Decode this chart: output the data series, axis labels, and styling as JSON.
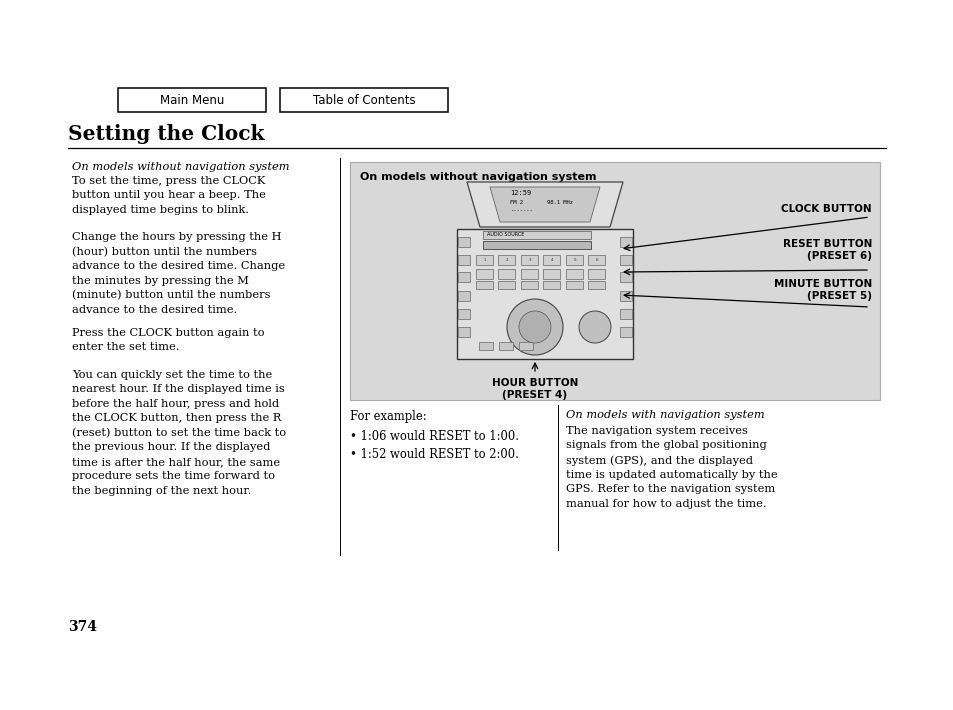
{
  "page_bg": "#ffffff",
  "title": "Setting the Clock",
  "page_number": "374",
  "btn1_text": "Main Menu",
  "btn2_text": "Table of Contents",
  "image_box": {
    "bg": "#d8d8d8",
    "header": "On models without navigation system",
    "label1": "CLOCK BUTTON",
    "label2": "RESET BUTTON\n(PRESET 6)",
    "label3": "MINUTE BUTTON\n(PRESET 5)",
    "label4": "HOUR BUTTON\n(PRESET 4)"
  },
  "left_italic": "On models without navigation system",
  "para1": "To set the time, press the CLOCK\nbutton until you hear a beep. The\ndisplayed time begins to blink.",
  "para2": "Change the hours by pressing the H\n(hour) button until the numbers\nadvance to the desired time. Change\nthe minutes by pressing the M\n(minute) button until the numbers\nadvance to the desired time.",
  "para3": "Press the CLOCK button again to\nenter the set time.",
  "para4": "You can quickly set the time to the\nnearest hour. If the displayed time is\nbefore the half hour, press and hold\nthe CLOCK button, then press the R\n(reset) button to set the time back to\nthe previous hour. If the displayed\ntime is after the half hour, the same\nprocedure sets the time forward to\nthe beginning of the next hour.",
  "for_example": "For example:",
  "bullet1": "• 1:06 would RESET to 1:00.",
  "bullet2": "• 1:52 would RESET to 2:00.",
  "nav_italic": "On models with navigation system",
  "nav_text": "The navigation system receives\nsignals from the global positioning\nsystem (GPS), and the displayed\ntime is updated automatically by the\nGPS. Refer to the navigation system\nmanual for how to adjust the time."
}
